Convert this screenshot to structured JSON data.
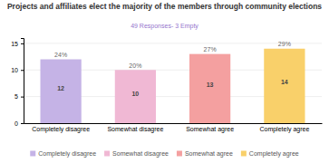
{
  "chart_data": {
    "type": "bar",
    "title": "Projects and affiliates elect the majority of the members through community elections",
    "subtitle": "49 Responses- 3 Empty",
    "categories": [
      "Completely disagree",
      "Somewhat disagree",
      "Somewhat agree",
      "Completely agree"
    ],
    "values": [
      12,
      10,
      13,
      14
    ],
    "percentages": [
      24,
      20,
      27,
      29
    ],
    "percentage_labels": [
      "24%",
      "20%",
      "27%",
      "29%"
    ],
    "colors": [
      "#c5b3e6",
      "#f0b8d4",
      "#f4a0a0",
      "#f9d06a"
    ],
    "ylim": [
      0,
      16
    ],
    "yticks": [
      0,
      5,
      10,
      15
    ],
    "grid": true,
    "legend": "bottom",
    "data_labels": true
  }
}
